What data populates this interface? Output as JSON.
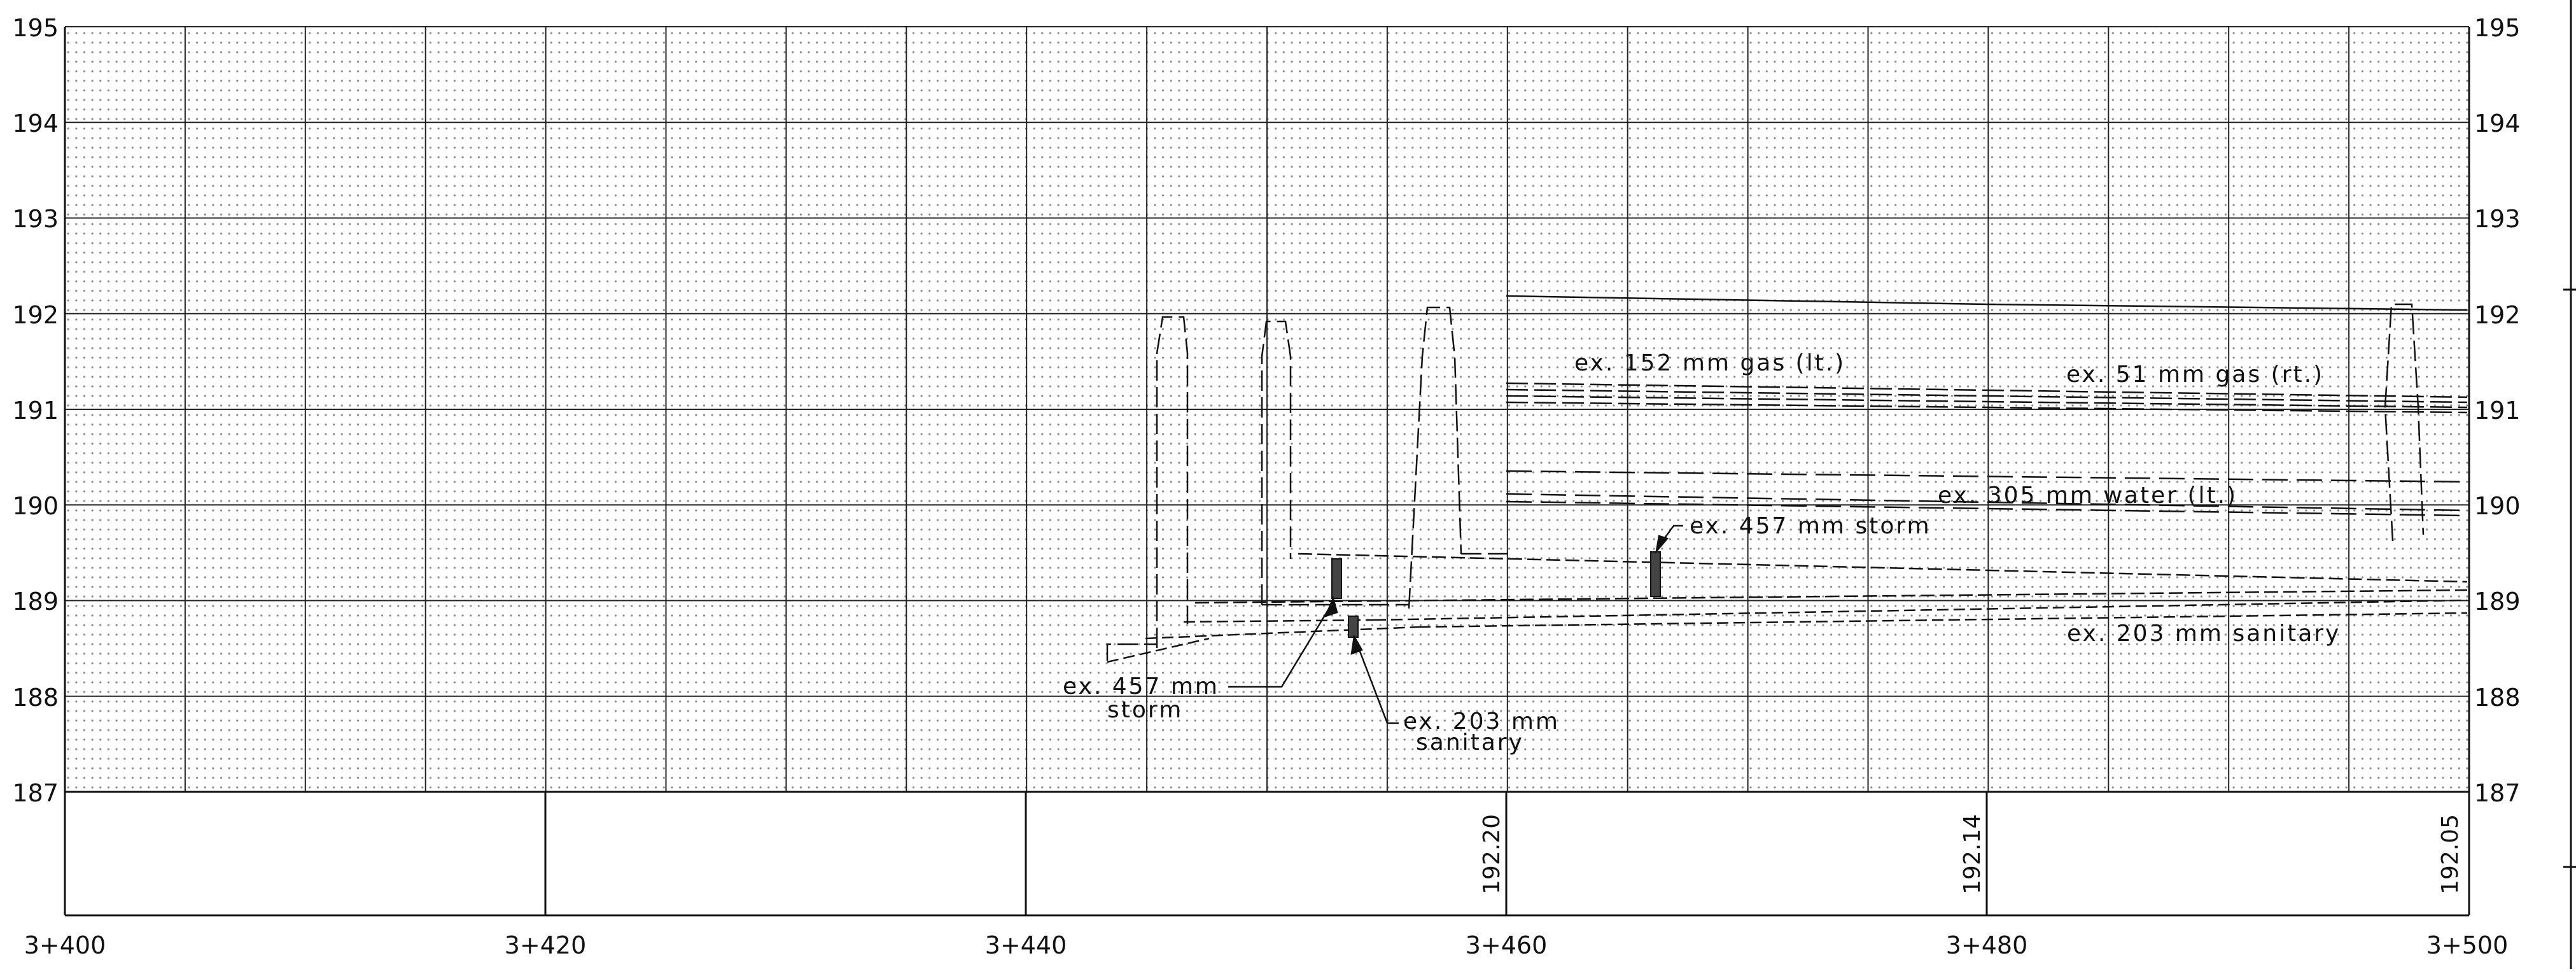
{
  "elevation_labels": [
    "195",
    "194",
    "193",
    "192",
    "191",
    "190",
    "189",
    "188",
    "187"
  ],
  "station_labels": [
    "3+400",
    "3+420",
    "3+440",
    "3+460",
    "3+480",
    "3+500"
  ],
  "grade_labels": [
    "192.20",
    "192.14",
    "192.05"
  ],
  "utilities": {
    "gas_left": "ex. 152 mm gas (lt.)",
    "gas_right": "ex. 51 mm gas (rt.)",
    "water": "ex. 305 mm water (lt.)",
    "storm_right": "ex. 457 mm storm",
    "sanitary_right": "ex. 203 mm sanitary",
    "storm_left_line1": "ex. 457 mm",
    "storm_left_line2": "storm",
    "sanitary_left_line1": "ex. 203 mm",
    "sanitary_left_line2": "sanitary"
  },
  "colors": {
    "line": "#111111",
    "dot": "#8a8a8a",
    "background": "#ffffff"
  }
}
